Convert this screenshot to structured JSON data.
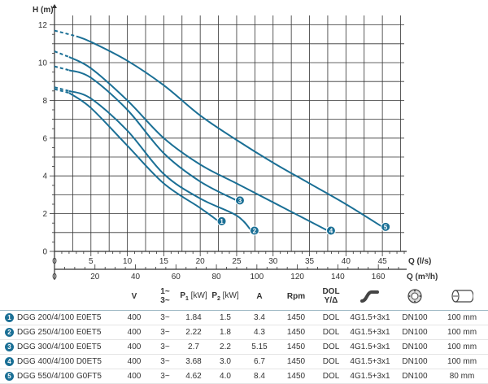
{
  "chart_data": {
    "type": "line",
    "ylabel": "H (m)",
    "xlabel_top": "Q (l/s)",
    "xlabel_bottom": "Q (m³/h)",
    "ylim": [
      0,
      12.5
    ],
    "xlim_ls": [
      0,
      48
    ],
    "xlim_m3h": [
      0,
      172.8
    ],
    "y_ticks": [
      0,
      2,
      4,
      6,
      8,
      10,
      12
    ],
    "x_ticks_ls": [
      0,
      5,
      10,
      15,
      20,
      25,
      30,
      35,
      40,
      45
    ],
    "x_ticks_m3h": [
      0,
      20,
      40,
      60,
      80,
      100,
      120,
      140,
      160
    ],
    "grid": true,
    "series": [
      {
        "name": "1",
        "dashed": [
          [
            0,
            8.6
          ],
          [
            2,
            8.4
          ]
        ],
        "x": [
          2,
          5,
          10,
          15,
          20,
          22.5
        ],
        "y": [
          8.4,
          7.6,
          5.6,
          3.6,
          2.3,
          1.6
        ]
      },
      {
        "name": "2",
        "dashed": [
          [
            0,
            8.7
          ],
          [
            2,
            8.5
          ]
        ],
        "x": [
          2,
          5,
          10,
          15,
          20,
          25,
          27
        ],
        "y": [
          8.5,
          8.1,
          6.4,
          4.1,
          2.8,
          1.9,
          1.1
        ]
      },
      {
        "name": "3",
        "dashed": [
          [
            0,
            9.8
          ],
          [
            2,
            9.6
          ]
        ],
        "x": [
          2,
          5,
          10,
          15,
          20,
          25
        ],
        "y": [
          9.6,
          9.2,
          7.5,
          5.2,
          3.7,
          2.7
        ]
      },
      {
        "name": "4",
        "dashed": [
          [
            0,
            10.6
          ],
          [
            2,
            10.3
          ]
        ],
        "x": [
          2,
          5,
          10,
          15,
          20,
          25,
          30,
          35,
          37.5
        ],
        "y": [
          10.3,
          9.7,
          8.0,
          6.0,
          4.6,
          3.6,
          2.6,
          1.6,
          1.1
        ]
      },
      {
        "name": "5",
        "dashed": [
          [
            0,
            11.7
          ],
          [
            3,
            11.4
          ]
        ],
        "x": [
          3,
          5,
          10,
          15,
          20,
          25,
          30,
          35,
          40,
          45
        ],
        "y": [
          11.4,
          11.1,
          10.1,
          8.8,
          7.2,
          5.9,
          4.7,
          3.6,
          2.5,
          1.3
        ]
      }
    ]
  },
  "colors": {
    "curve": "#1a6f95",
    "grid": "#333333",
    "axis": "#333333",
    "marker": "#1a6f95"
  },
  "table": {
    "headers": {
      "v": "V",
      "phase_top": "1~",
      "phase_bottom": "3~",
      "p1": "P",
      "p1_sub": "1",
      "p1_unit": "[kW]",
      "p2": "P",
      "p2_sub": "2",
      "p2_unit": "[kW]",
      "a": "A",
      "rpm": "Rpm",
      "dol_top": "DOL",
      "dol_bottom": "Y/Δ",
      "icon1": "cable-icon",
      "icon2": "outlet-flange-icon",
      "icon3": "pipe-size-icon"
    },
    "rows": [
      {
        "num": "1",
        "model": "DGG 200/4/100 E0ET5",
        "v": "400",
        "phase": "3~",
        "p1": "1.84",
        "p2": "1.5",
        "a": "3.4",
        "rpm": "1450",
        "dol": "DOL",
        "cable": "4G1.5+3x1",
        "dn": "DN100",
        "pipe": "100 mm"
      },
      {
        "num": "2",
        "model": "DGG 250/4/100 E0ET5",
        "v": "400",
        "phase": "3~",
        "p1": "2.22",
        "p2": "1.8",
        "a": "4.3",
        "rpm": "1450",
        "dol": "DOL",
        "cable": "4G1.5+3x1",
        "dn": "DN100",
        "pipe": "100 mm"
      },
      {
        "num": "3",
        "model": "DGG 300/4/100 E0ET5",
        "v": "400",
        "phase": "3~",
        "p1": "2.7",
        "p2": "2.2",
        "a": "5.15",
        "rpm": "1450",
        "dol": "DOL",
        "cable": "4G1.5+3x1",
        "dn": "DN100",
        "pipe": "100 mm"
      },
      {
        "num": "4",
        "model": "DGG 400/4/100 D0ET5",
        "v": "400",
        "phase": "3~",
        "p1": "3.68",
        "p2": "3.0",
        "a": "6.7",
        "rpm": "1450",
        "dol": "DOL",
        "cable": "4G1.5+3x1",
        "dn": "DN100",
        "pipe": "100 mm"
      },
      {
        "num": "5",
        "model": "DGG 550/4/100 G0FT5",
        "v": "400",
        "phase": "3~",
        "p1": "4.62",
        "p2": "4.0",
        "a": "8.4",
        "rpm": "1450",
        "dol": "DOL",
        "cable": "4G1.5+3x1",
        "dn": "DN100",
        "pipe": "80 mm"
      }
    ]
  }
}
